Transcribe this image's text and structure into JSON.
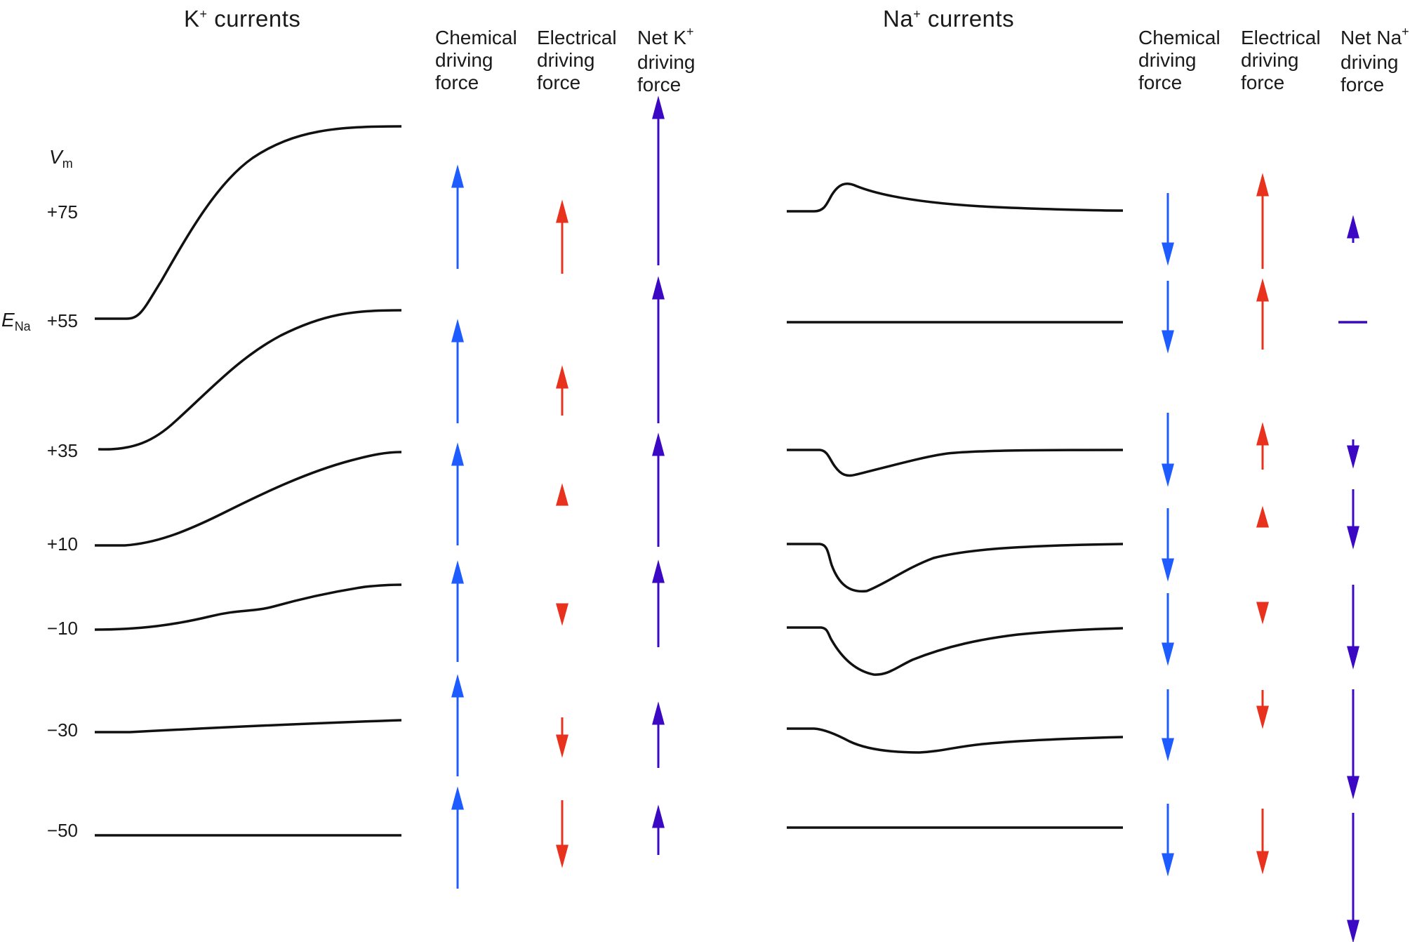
{
  "k_section": {
    "ion": "K",
    "sup": "+",
    "rest": " currents"
  },
  "na_section": {
    "ion": "Na",
    "sup": "+",
    "rest": " currents"
  },
  "k_headers": {
    "chemical": [
      "Chemical",
      "driving",
      "force"
    ],
    "electrical": [
      "Electrical",
      "driving",
      "force"
    ],
    "net": {
      "l1": "Net K",
      "sup": "+",
      "l2": "driving",
      "l3": "force"
    }
  },
  "na_headers": {
    "chemical": [
      "Chemical",
      "driving",
      "force"
    ],
    "electrical": [
      "Electrical",
      "driving",
      "force"
    ],
    "net": {
      "l1": "Net Na",
      "sup": "+",
      "l2": "driving",
      "l3": "force"
    }
  },
  "vm_axis": {
    "v": "V",
    "m": "m"
  },
  "ena_label": {
    "e": "E",
    "na": "Na"
  },
  "voltages": [
    "+75",
    "+55",
    "+35",
    "+10",
    "−10",
    "−30",
    "−50"
  ],
  "colors": {
    "trace": "#111111",
    "chemical": "#1f5cff",
    "electrical": "#e8321e",
    "net": "#3b08c4"
  }
}
